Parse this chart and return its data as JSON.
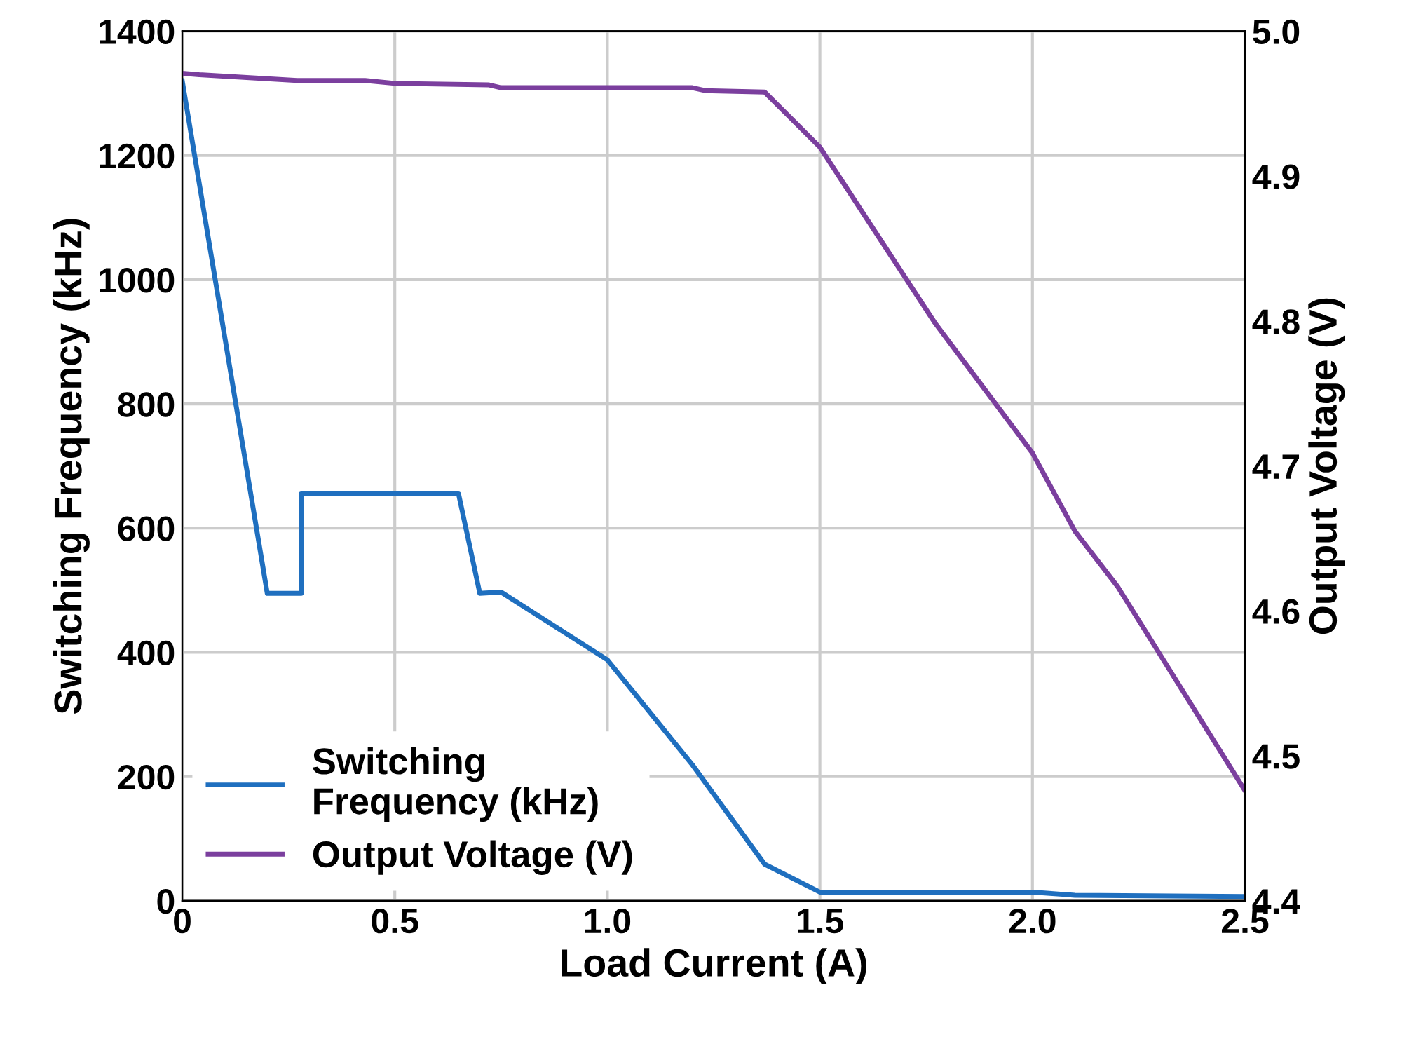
{
  "chart_data": {
    "type": "line",
    "xlabel": "Load Current (A)",
    "ylabel": "Switching Frequency (kHz)",
    "y2label": "Output Voltage (V)",
    "xlim": [
      0,
      2.5
    ],
    "xticks": [
      {
        "value": 0,
        "label": "0"
      },
      {
        "value": 0.5,
        "label": "0.5"
      },
      {
        "value": 1.0,
        "label": "1.0"
      },
      {
        "value": 1.5,
        "label": "1.5"
      },
      {
        "value": 2.0,
        "label": "2.0"
      },
      {
        "value": 2.5,
        "label": "2.5"
      }
    ],
    "ylim": [
      0,
      1400
    ],
    "yticks": [
      0,
      200,
      400,
      600,
      800,
      1000,
      1200,
      1400
    ],
    "y2lim": [
      4.4,
      5.0
    ],
    "y2ticks": [
      {
        "value": 4.4,
        "label": "4.4"
      },
      {
        "value": 4.5,
        "label": "4.5"
      },
      {
        "value": 4.6,
        "label": "4.6"
      },
      {
        "value": 4.7,
        "label": "4.7"
      },
      {
        "value": 4.8,
        "label": "4.8"
      },
      {
        "value": 4.9,
        "label": "4.9"
      },
      {
        "value": 5.0,
        "label": "5.0"
      }
    ],
    "grid": true,
    "legend": "bottom left",
    "marker": "none",
    "line_style": "solid",
    "series": [
      {
        "name": "Switching\nFrequency (kHz)",
        "color": "#1f6fbf",
        "x": [
          0,
          0.2,
          0.28,
          0.28,
          0.65,
          0.7,
          0.75,
          1.0,
          1.2,
          1.37,
          1.5,
          2.0,
          2.1,
          2.5
        ],
        "values": [
          1320,
          495,
          495,
          655,
          655,
          495,
          497,
          388,
          219,
          59,
          14,
          14,
          9,
          7
        ]
      },
      {
        "name": "Output Voltage (V)",
        "color": "#7b3f9e",
        "axis": "y2",
        "x": [
          0,
          0.04,
          0.27,
          0.43,
          0.5,
          0.72,
          0.75,
          1.2,
          1.23,
          1.37,
          1.5,
          1.77,
          2.0,
          2.1,
          2.2,
          2.5
        ],
        "values": [
          4.971,
          4.97,
          4.966,
          4.966,
          4.964,
          4.963,
          4.961,
          4.961,
          4.959,
          4.958,
          4.92,
          4.799,
          4.709,
          4.655,
          4.617,
          4.476
        ]
      }
    ]
  }
}
